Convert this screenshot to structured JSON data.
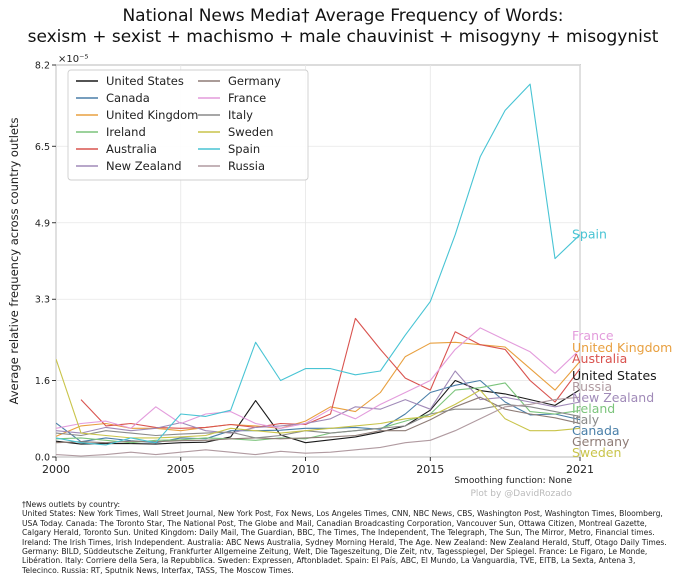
{
  "title_line1": "National News Media† Average Frequency of Words:",
  "title_line2": "sexism + sexist + machismo + male chauvinist + misogyny + misogynist",
  "smoothing_text": "Smoothing function: None",
  "credit_text": "Plot by @DavidRozado",
  "footnote_head": "†News outlets by country:",
  "footnote_body": "United States: New York Times, Wall Street Journal, New York Post, Fox News, Los Angeles Times, CNN, NBC News, CBS, Washington Post, Washington Times, Bloomberg, USA Today. Canada: The Toronto Star, The National Post, The Globe and Mail, Canadian Broadcasting Corporation, Vancouver Sun, Ottawa Citizen, Montreal Gazette, Calgary Herald, Toronto Sun. United Kingdom: Daily Mail, The Guardian, BBC, The Times, The Independent, The Telegraph, The Sun, The Mirror, Metro, Financial times. Ireland: The Irish Times, Irish Independent. Australia: ABC News Australia, Sydney Morning Herald, The Age. New Zealand: New Zealand Herald, Stuff, Otago Daily Times. Germany: BILD, Süddeutsche Zeitung, Frankfurter Allgemeine Zeitung, Welt, Die Tageszeitung, Die Zeit, ntv, Tagesspiegel, Der Spiegel. France: Le Figaro, Le Monde, Libération. Italy: Corriere della Sera, la Repubblica. Sweden: Expressen, Aftonbladet. Spain: El País, ABC, El Mundo, La Vanguardia, TVE, EITB, La Sexta, Antena 3, Telecinco. Russia: RT, Sputnik News, Interfax, TASS, The Moscow Times.",
  "chart_data": {
    "type": "line",
    "title": "National News Media† Average Frequency of Words: sexism + sexist + machismo + male chauvinist + misogyny + misogynist",
    "xlabel": "",
    "ylabel": "Average relative frequency across country outlets",
    "y_multiplier_label": "×10⁻⁵",
    "xlim": [
      2000,
      2021
    ],
    "ylim": [
      0.0,
      8.2
    ],
    "xticks": [
      2000,
      2005,
      2010,
      2015,
      2021
    ],
    "yticks": [
      0.0,
      1.6,
      3.3,
      4.9,
      6.5,
      8.2
    ],
    "ytick_labels": [
      "0.0",
      "1.6",
      "3.3",
      "4.9",
      "6.5",
      "8.2"
    ],
    "legend_position": "upper-left",
    "series": [
      {
        "name": "United States",
        "color": "#1a1a1a",
        "end_label": "United States",
        "x": [
          2000,
          2001,
          2002,
          2003,
          2004,
          2005,
          2006,
          2007,
          2008,
          2009,
          2010,
          2011,
          2012,
          2013,
          2014,
          2015,
          2016,
          2017,
          2018,
          2019,
          2020,
          2021
        ],
        "y": [
          0.33,
          0.27,
          0.28,
          0.28,
          0.27,
          0.3,
          0.31,
          0.42,
          1.18,
          0.46,
          0.3,
          0.36,
          0.42,
          0.52,
          0.65,
          0.98,
          1.6,
          1.39,
          1.32,
          1.2,
          1.08,
          1.41
        ]
      },
      {
        "name": "Canada",
        "color": "#4a7fa8",
        "end_label": "Canada",
        "x": [
          2000,
          2001,
          2002,
          2003,
          2004,
          2005,
          2006,
          2007,
          2008,
          2009,
          2010,
          2011,
          2012,
          2013,
          2014,
          2015,
          2016,
          2017,
          2018,
          2019,
          2020,
          2021
        ],
        "y": [
          0.71,
          0.32,
          0.4,
          0.34,
          0.3,
          0.4,
          0.38,
          0.55,
          0.55,
          0.56,
          0.6,
          0.6,
          0.62,
          0.58,
          0.9,
          1.35,
          1.5,
          1.6,
          1.15,
          0.88,
          0.9,
          0.78
        ]
      },
      {
        "name": "United Kingdom",
        "color": "#e8a040",
        "end_label": "United Kingdom",
        "x": [
          2000,
          2001,
          2002,
          2003,
          2004,
          2005,
          2006,
          2007,
          2008,
          2009,
          2010,
          2011,
          2012,
          2013,
          2014,
          2015,
          2016,
          2017,
          2018,
          2019,
          2020,
          2021
        ],
        "y": [
          0.43,
          0.65,
          0.7,
          0.6,
          0.6,
          0.55,
          0.62,
          0.68,
          0.65,
          0.6,
          0.75,
          1.05,
          0.95,
          1.35,
          2.1,
          2.38,
          2.4,
          2.35,
          2.3,
          1.85,
          1.4,
          2.0
        ]
      },
      {
        "name": "Ireland",
        "color": "#7cc47c",
        "end_label": "Ireland",
        "x": [
          2000,
          2001,
          2002,
          2003,
          2004,
          2005,
          2006,
          2007,
          2008,
          2009,
          2010,
          2011,
          2012,
          2013,
          2014,
          2015,
          2016,
          2017,
          2018,
          2019,
          2020,
          2021
        ],
        "y": [
          0.38,
          0.4,
          0.35,
          0.3,
          0.35,
          0.36,
          0.4,
          0.38,
          0.35,
          0.4,
          0.38,
          0.5,
          0.55,
          0.6,
          0.75,
          0.9,
          1.4,
          1.45,
          1.55,
          0.95,
          0.9,
          0.97
        ]
      },
      {
        "name": "Australia",
        "color": "#d9534f",
        "end_label": "Australia",
        "x": [
          2001,
          2002,
          2003,
          2004,
          2005,
          2006,
          2007,
          2008,
          2009,
          2010,
          2011,
          2012,
          2013,
          2014,
          2015,
          2016,
          2017,
          2018,
          2019,
          2020,
          2021
        ],
        "y": [
          1.2,
          0.65,
          0.7,
          0.62,
          0.6,
          0.62,
          0.68,
          0.62,
          0.7,
          0.68,
          0.9,
          2.9,
          2.25,
          1.65,
          1.4,
          2.62,
          2.35,
          2.25,
          1.6,
          1.15,
          1.85
        ]
      },
      {
        "name": "New Zealand",
        "color": "#a08ab8",
        "end_label": "New Zealand",
        "x": [
          2000,
          2001,
          2002,
          2003,
          2004,
          2005,
          2006,
          2007,
          2008,
          2009,
          2010,
          2011,
          2012,
          2013,
          2014,
          2015,
          2016,
          2017,
          2018,
          2019,
          2020,
          2021
        ],
        "y": [
          0.55,
          0.5,
          0.62,
          0.55,
          0.6,
          0.72,
          0.55,
          0.5,
          0.62,
          0.65,
          0.7,
          0.8,
          1.05,
          1.0,
          1.2,
          1.0,
          1.8,
          1.2,
          1.25,
          1.15,
          1.05,
          1.15
        ]
      },
      {
        "name": "Germany",
        "color": "#8e7c76",
        "end_label": "Germany",
        "x": [
          2000,
          2001,
          2002,
          2003,
          2004,
          2005,
          2006,
          2007,
          2008,
          2009,
          2010,
          2011,
          2012,
          2013,
          2014,
          2015,
          2016,
          2017,
          2018,
          2019,
          2020,
          2021
        ],
        "y": [
          0.3,
          0.32,
          0.3,
          0.33,
          0.32,
          0.34,
          0.35,
          0.38,
          0.4,
          0.38,
          0.4,
          0.42,
          0.45,
          0.55,
          0.55,
          0.78,
          1.05,
          1.25,
          1.0,
          0.9,
          0.82,
          0.7
        ]
      },
      {
        "name": "France",
        "color": "#e39cdc",
        "end_label": "France",
        "x": [
          2000,
          2001,
          2002,
          2003,
          2004,
          2005,
          2006,
          2007,
          2008,
          2009,
          2010,
          2011,
          2012,
          2013,
          2014,
          2015,
          2016,
          2017,
          2018,
          2019,
          2020,
          2021
        ],
        "y": [
          0.6,
          0.7,
          0.75,
          0.6,
          1.05,
          0.7,
          0.9,
          0.95,
          0.7,
          0.6,
          0.7,
          1.0,
          0.8,
          1.1,
          1.35,
          1.6,
          2.25,
          2.7,
          2.45,
          2.2,
          1.75,
          2.25
        ]
      },
      {
        "name": "Italy",
        "color": "#8a8a8a",
        "end_label": "Italy",
        "x": [
          2000,
          2001,
          2002,
          2003,
          2004,
          2005,
          2006,
          2007,
          2008,
          2009,
          2010,
          2011,
          2012,
          2013,
          2014,
          2015,
          2016,
          2017,
          2018,
          2019,
          2020,
          2021
        ],
        "y": [
          0.5,
          0.45,
          0.55,
          0.5,
          0.45,
          0.48,
          0.5,
          0.52,
          0.4,
          0.45,
          0.55,
          0.5,
          0.55,
          0.6,
          0.65,
          0.9,
          1.0,
          1.0,
          1.1,
          1.05,
          0.95,
          0.85
        ]
      },
      {
        "name": "Sweden",
        "color": "#c9c44a",
        "end_label": "Sweden",
        "x": [
          2000,
          2001,
          2002,
          2003,
          2004,
          2005,
          2006,
          2007,
          2008,
          2009,
          2010,
          2011,
          2012,
          2013,
          2014,
          2015,
          2016,
          2017,
          2018,
          2019,
          2020,
          2021
        ],
        "y": [
          2.05,
          0.5,
          0.45,
          0.4,
          0.4,
          0.42,
          0.45,
          0.6,
          0.55,
          0.5,
          0.55,
          0.6,
          0.65,
          0.7,
          0.8,
          0.85,
          1.1,
          1.4,
          0.8,
          0.55,
          0.55,
          0.6
        ]
      },
      {
        "name": "Spain",
        "color": "#48c4d4",
        "end_label": "Spain",
        "x": [
          2000,
          2001,
          2002,
          2003,
          2004,
          2005,
          2006,
          2007,
          2008,
          2009,
          2010,
          2011,
          2012,
          2013,
          2014,
          2015,
          2016,
          2017,
          2018,
          2019,
          2020,
          2021
        ],
        "y": [
          0.4,
          0.3,
          0.25,
          0.4,
          0.3,
          0.9,
          0.85,
          0.98,
          2.4,
          1.6,
          1.85,
          1.85,
          1.72,
          1.8,
          2.55,
          3.25,
          4.65,
          6.28,
          7.25,
          7.8,
          4.15,
          4.65
        ]
      },
      {
        "name": "Russia",
        "color": "#b09aa0",
        "end_label": "Russia",
        "x": [
          2000,
          2001,
          2002,
          2003,
          2004,
          2005,
          2006,
          2007,
          2008,
          2009,
          2010,
          2011,
          2012,
          2013,
          2014,
          2015,
          2016,
          2017,
          2018,
          2019,
          2020,
          2021
        ],
        "y": [
          0.05,
          0.02,
          0.05,
          0.1,
          0.05,
          0.1,
          0.15,
          0.1,
          0.05,
          0.12,
          0.08,
          0.1,
          0.15,
          0.2,
          0.3,
          0.35,
          0.55,
          0.8,
          1.05,
          1.1,
          1.2,
          1.25
        ]
      }
    ]
  }
}
